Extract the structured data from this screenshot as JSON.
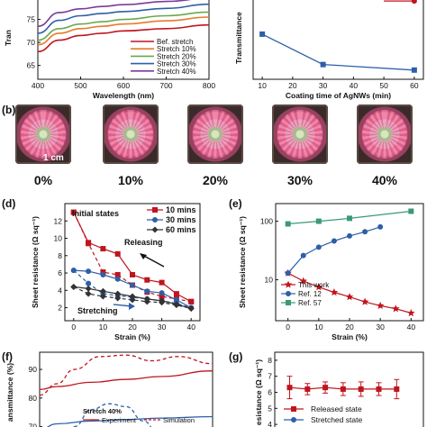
{
  "chart_data": [
    {
      "panel": "a",
      "type": "line",
      "xlabel": "Wavelength (nm)",
      "ylabel": "Tran",
      "xlim": [
        400,
        800
      ],
      "ylim": [
        62,
        80
      ],
      "xticks": [
        400,
        500,
        600,
        700,
        800
      ],
      "yticks": [
        65,
        70,
        75
      ],
      "series": [
        {
          "name": "Bef. stretch",
          "color": "#c0141e",
          "x": [
            400,
            450,
            500,
            550,
            600,
            700,
            800
          ],
          "y": [
            68,
            70.5,
            71.5,
            72,
            72.5,
            73,
            73.8
          ]
        },
        {
          "name": "Stretch 10%",
          "color": "#e87a2a",
          "x": [
            400,
            450,
            500,
            550,
            600,
            700,
            800
          ],
          "y": [
            69.5,
            72,
            73,
            73.5,
            74,
            74.7,
            75.5
          ]
        },
        {
          "name": "Stretch 20%",
          "color": "#6aa84f",
          "x": [
            400,
            450,
            500,
            550,
            600,
            700,
            800
          ],
          "y": [
            70.5,
            73,
            74,
            74.5,
            75,
            75.8,
            76.6
          ]
        },
        {
          "name": "Stretch 30%",
          "color": "#2e5fa8",
          "x": [
            400,
            450,
            500,
            550,
            600,
            700,
            800
          ],
          "y": [
            72,
            74.8,
            75.8,
            76.3,
            76.7,
            77.4,
            78.3
          ]
        },
        {
          "name": "Stretch 40%",
          "color": "#7a3a9a",
          "x": [
            400,
            450,
            500,
            550,
            600,
            700,
            800
          ],
          "y": [
            73.5,
            76.5,
            77.3,
            77.8,
            78.2,
            78.9,
            79.6
          ]
        }
      ]
    },
    {
      "panel": "a-right",
      "type": "line",
      "xlabel": "Coating time of AgNWs (min)",
      "ylabel": "Transmittance",
      "xlim": [
        7,
        63
      ],
      "ylim": [
        62,
        80
      ],
      "xticks": [
        10,
        20,
        30,
        40,
        50,
        60
      ],
      "series": [
        {
          "name": "",
          "color": "#2e5fa8",
          "x": [
            10,
            30,
            60
          ],
          "y": [
            71.8,
            65.2,
            64
          ]
        },
        {
          "name": "",
          "color": "#c0141e",
          "x": [
            60
          ],
          "y": [
            79
          ]
        }
      ]
    },
    {
      "panel": "d",
      "type": "line",
      "xlabel": "Strain (%)",
      "ylabel": "Sheet resistance (Ω sq⁻¹)",
      "xlim": [
        -3,
        43
      ],
      "ylim": [
        0.5,
        14
      ],
      "xticks": [
        0,
        10,
        20,
        30,
        40
      ],
      "yticks": [
        2,
        4,
        6,
        8,
        10,
        12
      ],
      "series": [
        {
          "name": "10 mins",
          "color": "#c0141e",
          "x": [
            0,
            5,
            10,
            15,
            20,
            25,
            30,
            35,
            40
          ],
          "y": [
            13,
            9.5,
            8.8,
            8.2,
            5.8,
            5.2,
            4.9,
            3.6,
            2.7
          ]
        },
        {
          "name": "10 mins stretching",
          "color": "#c0141e",
          "x": [
            0,
            5,
            10,
            15,
            20,
            25,
            30,
            35,
            40
          ],
          "y": [
            13,
            9.4,
            6.1,
            5.8,
            4.6,
            3.8,
            3.3,
            3.0,
            2.7
          ]
        },
        {
          "name": "30 mins",
          "color": "#2e5fa8",
          "x": [
            0,
            5,
            10,
            15,
            20,
            25,
            30,
            35,
            40
          ],
          "y": [
            6.3,
            6.2,
            5.8,
            5.3,
            4.6,
            3.9,
            3.7,
            2.9,
            2.0
          ]
        },
        {
          "name": "30 mins stretching",
          "color": "#2e5fa8",
          "x": [
            0,
            5,
            10,
            15,
            20,
            25,
            30,
            35,
            40
          ],
          "y": [
            6.3,
            4.8,
            3.6,
            3.4,
            3.2,
            3.0,
            2.8,
            2.5,
            2.0
          ]
        },
        {
          "name": "60 mins",
          "color": "#333333",
          "x": [
            0,
            5,
            10,
            15,
            20,
            25,
            30,
            35,
            40
          ],
          "y": [
            4.4,
            4.2,
            3.9,
            3.6,
            3.3,
            3.0,
            2.8,
            2.4,
            1.9
          ]
        },
        {
          "name": "60 mins stretching",
          "color": "#333333",
          "x": [
            0,
            5,
            10,
            15,
            20,
            25,
            30,
            35,
            40
          ],
          "y": [
            4.4,
            3.6,
            3.3,
            3.1,
            2.9,
            2.7,
            2.6,
            2.3,
            1.9
          ]
        }
      ],
      "annotations": [
        "Initial states",
        "Releasing",
        "Stretching"
      ]
    },
    {
      "panel": "e",
      "type": "line",
      "xlabel": "Strain (%)",
      "ylabel": "Sheet resistance (Ω sq⁻¹)",
      "yscale": "log",
      "xlim": [
        -4,
        44
      ],
      "ylim": [
        2,
        200
      ],
      "xticks": [
        0,
        10,
        20,
        30,
        40
      ],
      "yticks": [
        10,
        100
      ],
      "series": [
        {
          "name": "This work",
          "color": "#c0141e",
          "x": [
            0,
            5,
            10,
            15,
            20,
            25,
            30,
            35,
            40
          ],
          "y": [
            13,
            9.5,
            7.5,
            6.1,
            5.1,
            4.2,
            3.6,
            3.2,
            2.7
          ]
        },
        {
          "name": "Ref. 12",
          "color": "#2e5fa8",
          "x": [
            0,
            5,
            10,
            15,
            20,
            25,
            30
          ],
          "y": [
            13,
            26,
            36,
            46,
            56,
            66,
            80
          ]
        },
        {
          "name": "Ref. 57",
          "color": "#3a9a74",
          "x": [
            0,
            10,
            20,
            40
          ],
          "y": [
            90,
            100,
            112,
            148
          ]
        }
      ]
    },
    {
      "panel": "f",
      "type": "line",
      "ylabel": "ansmittance (%)",
      "xlim": [
        0,
        1
      ],
      "ylim": [
        68,
        96
      ],
      "yticks": [
        70,
        80,
        90
      ],
      "series": [
        {
          "name": "Experiment",
          "color": "#c0141e",
          "style": "solid",
          "x": [
            0,
            0.1,
            0.3,
            0.5,
            0.7,
            1
          ],
          "y": [
            83,
            84,
            85.5,
            86.5,
            87.5,
            89.5
          ]
        },
        {
          "name": "Simulation",
          "color": "#c0141e",
          "style": "dashed",
          "x": [
            0,
            0.1,
            0.2,
            0.35,
            0.5,
            0.65,
            0.8,
            1
          ],
          "y": [
            81,
            85,
            90,
            94.5,
            95,
            93,
            94.5,
            92
          ]
        },
        {
          "name": "",
          "color": "#2e5fa8",
          "style": "solid",
          "x": [
            0,
            0.1,
            0.3,
            0.5,
            0.7,
            1
          ],
          "y": [
            69,
            71,
            72,
            72.5,
            73,
            73.5
          ]
        },
        {
          "name": "",
          "color": "#2e5fa8",
          "style": "dashed",
          "x": [
            0.1,
            0.2,
            0.3,
            0.4,
            0.5,
            0.6,
            0.7
          ],
          "y": [
            64,
            70,
            76,
            78,
            77,
            72,
            66
          ]
        }
      ],
      "annotations": [
        "Stretch 40%"
      ]
    },
    {
      "panel": "g",
      "type": "line",
      "ylabel": "esistance (Ω sq⁻¹)",
      "xlim": [
        0,
        10
      ],
      "ylim": [
        3.5,
        8.5
      ],
      "yticks": [
        4,
        5,
        6,
        7,
        8
      ],
      "series": [
        {
          "name": "Released state",
          "color": "#c0141e",
          "x": [
            1,
            2.2,
            3.4,
            4.6,
            5.8,
            7,
            8.2
          ],
          "y": [
            6.3,
            6.2,
            6.3,
            6.2,
            6.2,
            6.2,
            6.2
          ],
          "err": [
            0.7,
            0.35,
            0.35,
            0.4,
            0.45,
            0.4,
            0.6
          ]
        },
        {
          "name": "Stretched state",
          "color": "#2e5fa8",
          "x": [],
          "y": []
        }
      ]
    }
  ],
  "panel_b": {
    "scale_label": "1 cm",
    "labels": [
      "0%",
      "10%",
      "20%",
      "30%",
      "40%"
    ]
  },
  "panel_letters": [
    "(b)",
    "(d)",
    "(e)",
    "(f)",
    "(g)"
  ],
  "text": {
    "a_left_ylabel": "Tran",
    "a_right_ylabel": "Transmittance"
  }
}
